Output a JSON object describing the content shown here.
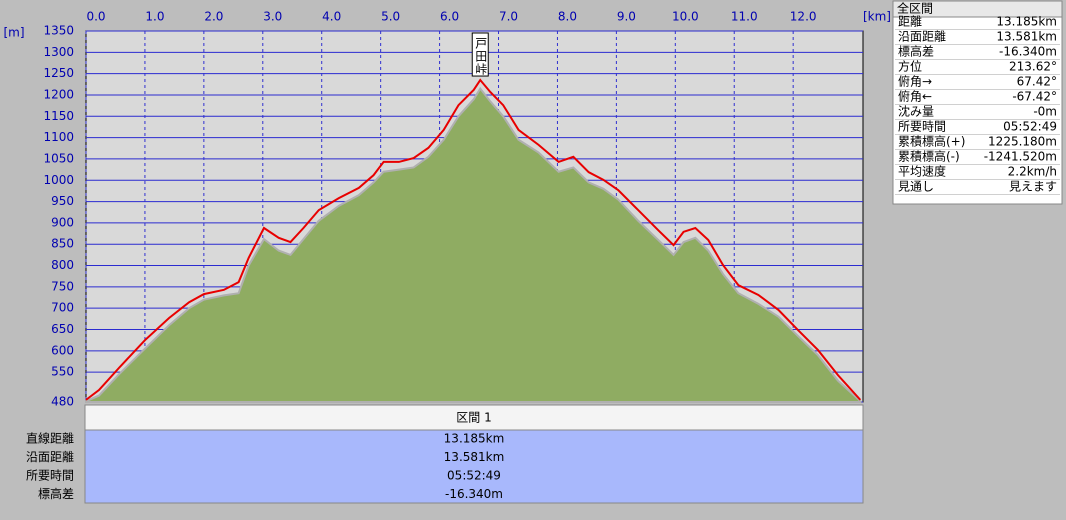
{
  "chart_data": {
    "type": "area",
    "x_unit": "[km]",
    "y_unit": "[m]",
    "xlim": [
      0,
      13.185
    ],
    "ylim": [
      480,
      1350
    ],
    "xticks": [
      {
        "value": 0,
        "label": "0.0"
      },
      {
        "value": 1,
        "label": "1.0"
      },
      {
        "value": 2,
        "label": "2.0"
      },
      {
        "value": 3,
        "label": "3.0"
      },
      {
        "value": 4,
        "label": "4.0"
      },
      {
        "value": 5,
        "label": "5.0"
      },
      {
        "value": 6,
        "label": "6.0"
      },
      {
        "value": 7,
        "label": "7.0"
      },
      {
        "value": 8,
        "label": "8.0"
      },
      {
        "value": 9,
        "label": "9.0"
      },
      {
        "value": 10,
        "label": "10.0"
      },
      {
        "value": 11,
        "label": "11.0"
      },
      {
        "value": 12,
        "label": "12.0"
      }
    ],
    "yticks": [
      480,
      550,
      600,
      650,
      700,
      750,
      800,
      850,
      900,
      950,
      1000,
      1050,
      1100,
      1150,
      1200,
      1250,
      1300,
      1350
    ],
    "grid": true,
    "x": [
      0,
      0.22,
      0.56,
      1.0,
      1.41,
      1.75,
      2.0,
      2.34,
      2.59,
      2.76,
      3.02,
      3.27,
      3.47,
      3.69,
      3.95,
      4.29,
      4.63,
      4.88,
      5.05,
      5.31,
      5.56,
      5.81,
      6.07,
      6.32,
      6.58,
      6.69,
      6.86,
      7.08,
      7.34,
      7.68,
      8.02,
      8.27,
      8.53,
      8.78,
      9.03,
      9.37,
      9.71,
      9.97,
      10.14,
      10.34,
      10.56,
      10.81,
      11.07,
      11.41,
      11.75,
      12.08,
      12.42,
      12.76,
      13.14
    ],
    "series": [
      {
        "style": "area",
        "color": "#8fac62",
        "values": [
          482,
          495,
          545,
          605,
          660,
          700,
          720,
          730,
          735,
          800,
          862,
          835,
          825,
          862,
          905,
          940,
          965,
          995,
          1020,
          1025,
          1030,
          1055,
          1095,
          1150,
          1190,
          1215,
          1185,
          1150,
          1095,
          1065,
          1020,
          1030,
          995,
          980,
          955,
          905,
          860,
          825,
          855,
          865,
          835,
          780,
          735,
          710,
          680,
          635,
          590,
          530,
          482
        ]
      },
      {
        "style": "line",
        "color": "#e80000",
        "values": [
          485,
          508,
          560,
          625,
          677,
          714,
          733,
          743,
          761,
          818,
          888,
          865,
          855,
          888,
          930,
          958,
          982,
          1012,
          1043,
          1043,
          1052,
          1076,
          1118,
          1176,
          1212,
          1235,
          1207,
          1176,
          1118,
          1083,
          1043,
          1055,
          1019,
          1001,
          977,
          930,
          883,
          848,
          879,
          888,
          860,
          801,
          754,
          731,
          696,
          649,
          602,
          543,
          485
        ]
      }
    ],
    "annotations": [
      {
        "text": "戸田峠",
        "x": 6.69,
        "y": 1235
      }
    ]
  },
  "summary": {
    "title": "全区間",
    "rows": [
      [
        "距離",
        "13.185km"
      ],
      [
        "沿面距離",
        "13.581km"
      ],
      [
        "標高差",
        "-16.340m"
      ],
      [
        "方位",
        "213.62°"
      ],
      [
        "俯角→",
        "67.42°"
      ],
      [
        "俯角←",
        "-67.42°"
      ],
      [
        "沈み量",
        "-0m"
      ],
      [
        "所要時間",
        "05:52:49"
      ],
      [
        "累積標高(+)",
        "1225.180m"
      ],
      [
        "累積標高(-)",
        "-1241.520m"
      ],
      [
        "平均速度",
        "2.2km/h"
      ],
      [
        "見通し",
        "見えます"
      ]
    ]
  },
  "section": {
    "header": "区間 1",
    "rows": [
      [
        "直線距離",
        "13.185km"
      ],
      [
        "沿面距離",
        "13.581km"
      ],
      [
        "所要時間",
        "05:52:49"
      ],
      [
        "標高差",
        "-16.340m"
      ]
    ]
  }
}
